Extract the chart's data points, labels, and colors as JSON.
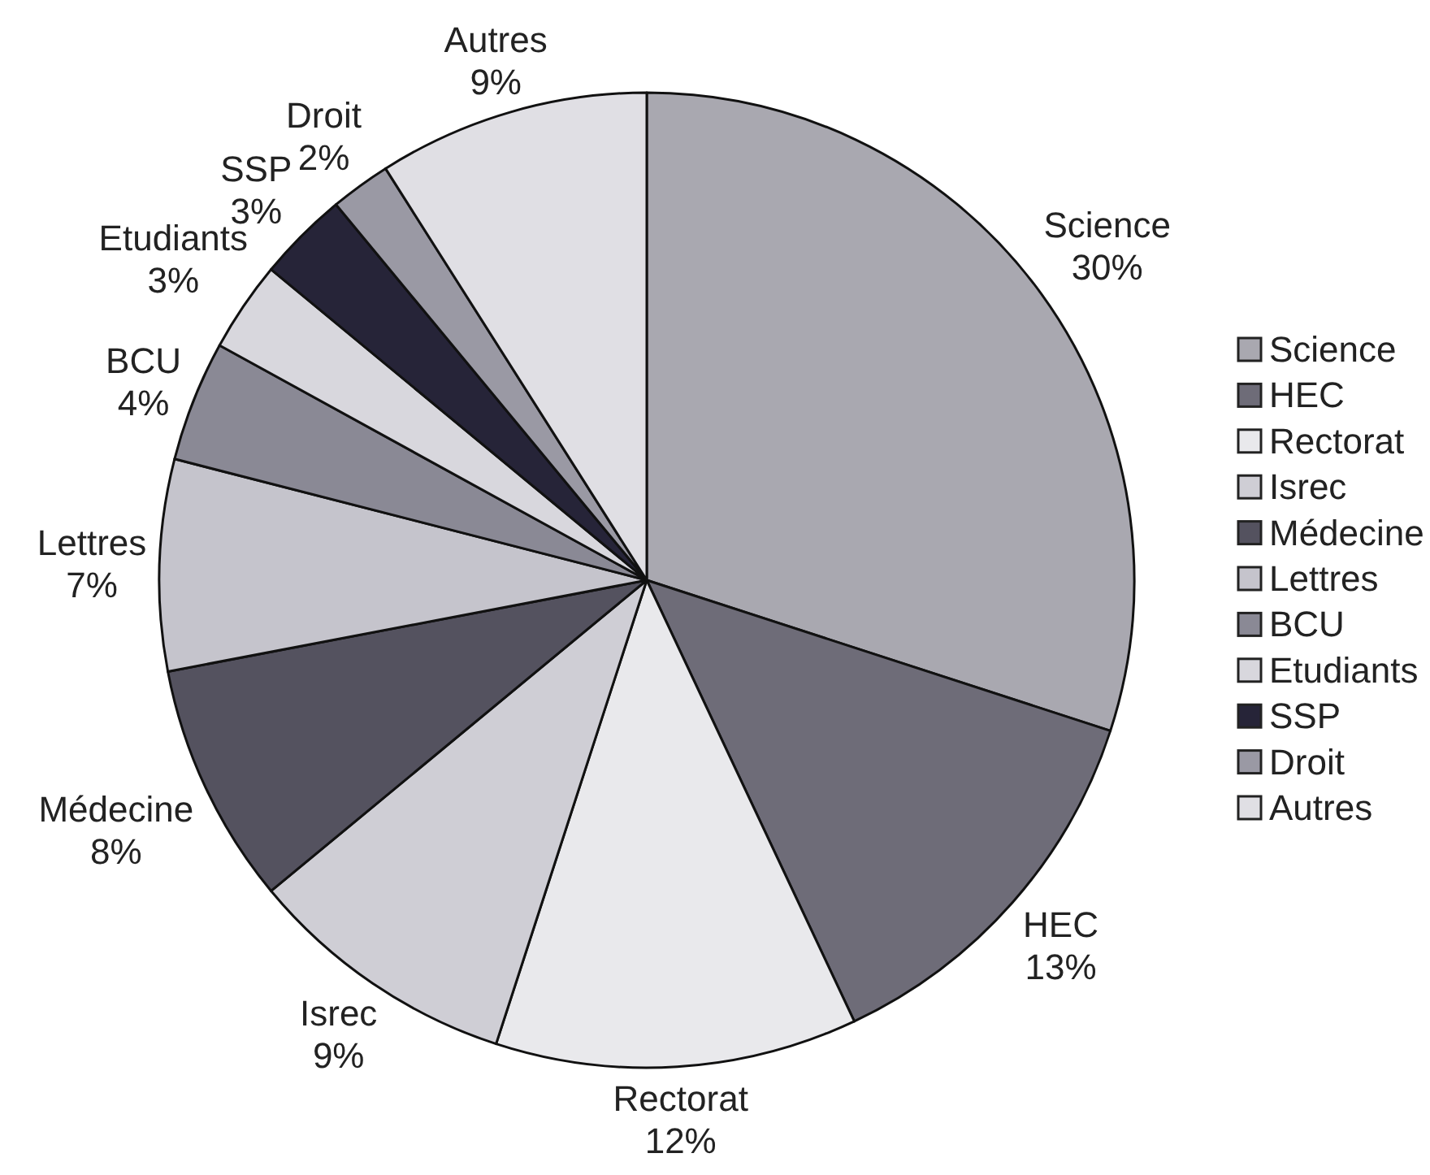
{
  "chart_data": {
    "type": "pie",
    "categories": [
      "Science",
      "HEC",
      "Rectorat",
      "Isrec",
      "Médecine",
      "Lettres",
      "BCU",
      "Etudiants",
      "SSP",
      "Droit",
      "Autres"
    ],
    "values": [
      30,
      13,
      12,
      9,
      8,
      7,
      4,
      3,
      3,
      2,
      9
    ],
    "value_labels": [
      "30%",
      "13%",
      "12%",
      "9%",
      "8%",
      "7%",
      "4%",
      "3%",
      "3%",
      "2%",
      "9%"
    ],
    "colors": [
      "#a9a8b0",
      "#6e6c78",
      "#e9e9ec",
      "#cfced5",
      "#54525f",
      "#c5c4cc",
      "#8a8995",
      "#d8d7dd",
      "#262438",
      "#9a99a4",
      "#e0dfe4"
    ],
    "legend": "right"
  }
}
